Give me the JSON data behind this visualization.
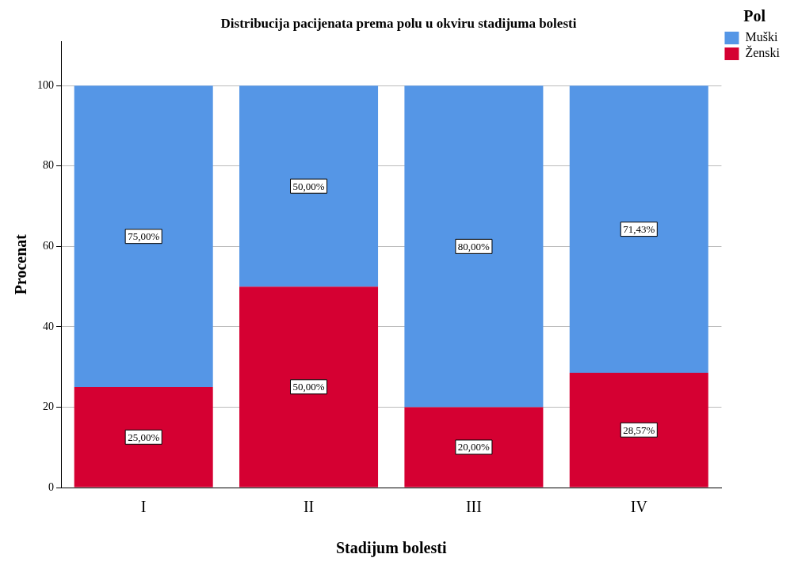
{
  "chart_data": {
    "type": "bar",
    "title": "Distribucija pacijenata prema polu u okviru stadijuma bolesti",
    "xlabel": "Stadijum bolesti",
    "ylabel": "Procenat",
    "legend_title": "Pol",
    "categories": [
      "I",
      "II",
      "III",
      "IV"
    ],
    "stacked": true,
    "series": [
      {
        "name": "Ženski",
        "color": "#d50032",
        "values": [
          25,
          50,
          20,
          28.57
        ],
        "value_labels": [
          "25,00%",
          "50,00%",
          "20,00%",
          "28,57%"
        ]
      },
      {
        "name": "Muški",
        "color": "#5596e6",
        "values": [
          75,
          50,
          80,
          71.43
        ],
        "value_labels": [
          "75,00%",
          "50,00%",
          "80,00%",
          "71,43%"
        ]
      }
    ],
    "ylim": [
      0,
      111
    ],
    "yticks": [
      0,
      20,
      40,
      60,
      80,
      100
    ],
    "grid": "y",
    "legend": "top right"
  }
}
